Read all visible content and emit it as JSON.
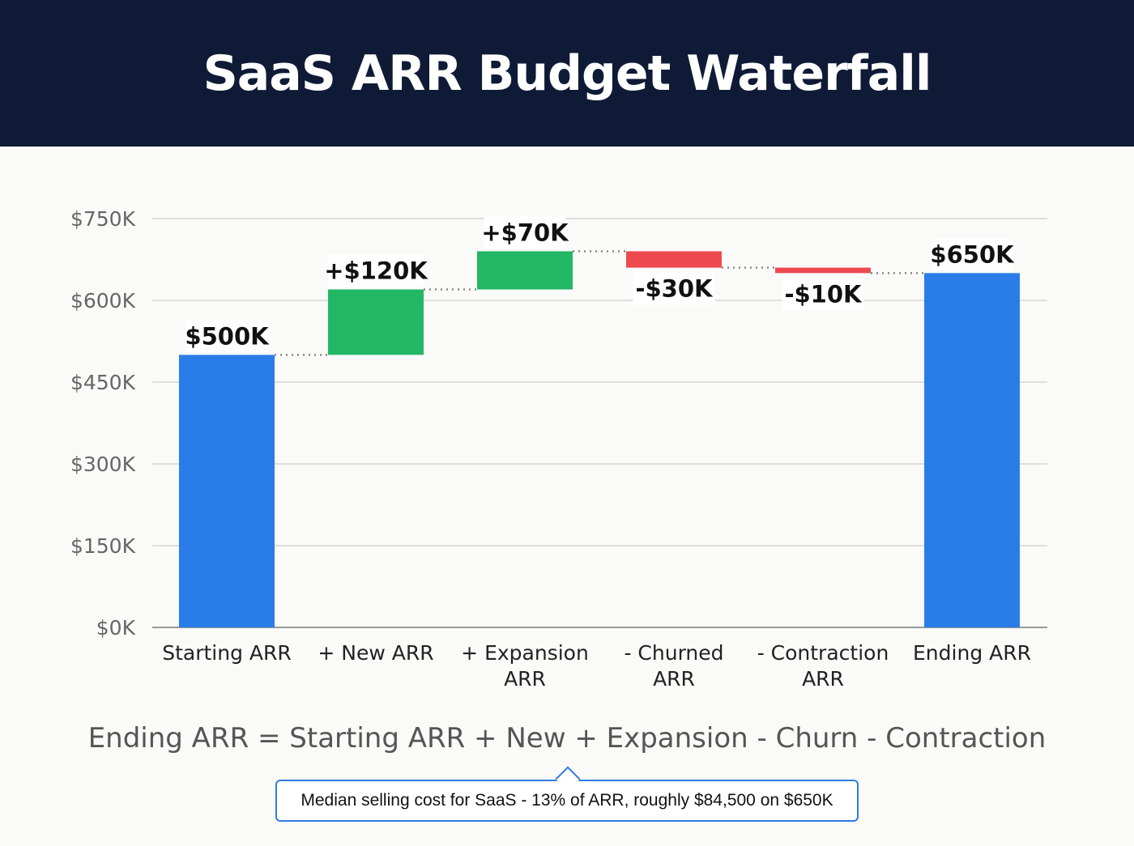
{
  "chart_data": {
    "type": "waterfall",
    "title": "SaaS ARR Budget Waterfall",
    "categories": [
      [
        "Starting ARR"
      ],
      [
        "+ New ARR"
      ],
      [
        "+ Expansion",
        "ARR"
      ],
      [
        "- Churned",
        "ARR"
      ],
      [
        "- Contraction",
        "ARR"
      ],
      [
        "Ending ARR"
      ]
    ],
    "values": [
      500,
      120,
      70,
      -30,
      -10,
      650
    ],
    "kinds": [
      "total",
      "increase",
      "increase",
      "decrease",
      "decrease",
      "total"
    ],
    "data_labels": [
      "$500K",
      "+$120K",
      "+$70K",
      "-$30K",
      "-$10K",
      "$650K"
    ],
    "yticks": [
      0,
      150,
      300,
      450,
      600,
      750
    ],
    "ytick_labels": [
      "$0K",
      "$150K",
      "$300K",
      "$450K",
      "$600K",
      "$750K"
    ],
    "ylim": [
      0,
      750
    ],
    "unit": "$K",
    "grid": true,
    "colors": {
      "total": "#2a7de9",
      "increase": "#22b765",
      "decrease": "#ec4a4f",
      "connector": "#888888"
    }
  },
  "formula": "Ending ARR = Starting ARR + New + Expansion - Churn - Contraction",
  "callout": "Median selling cost for SaaS - 13% of ARR, roughly $84,500 on $650K"
}
